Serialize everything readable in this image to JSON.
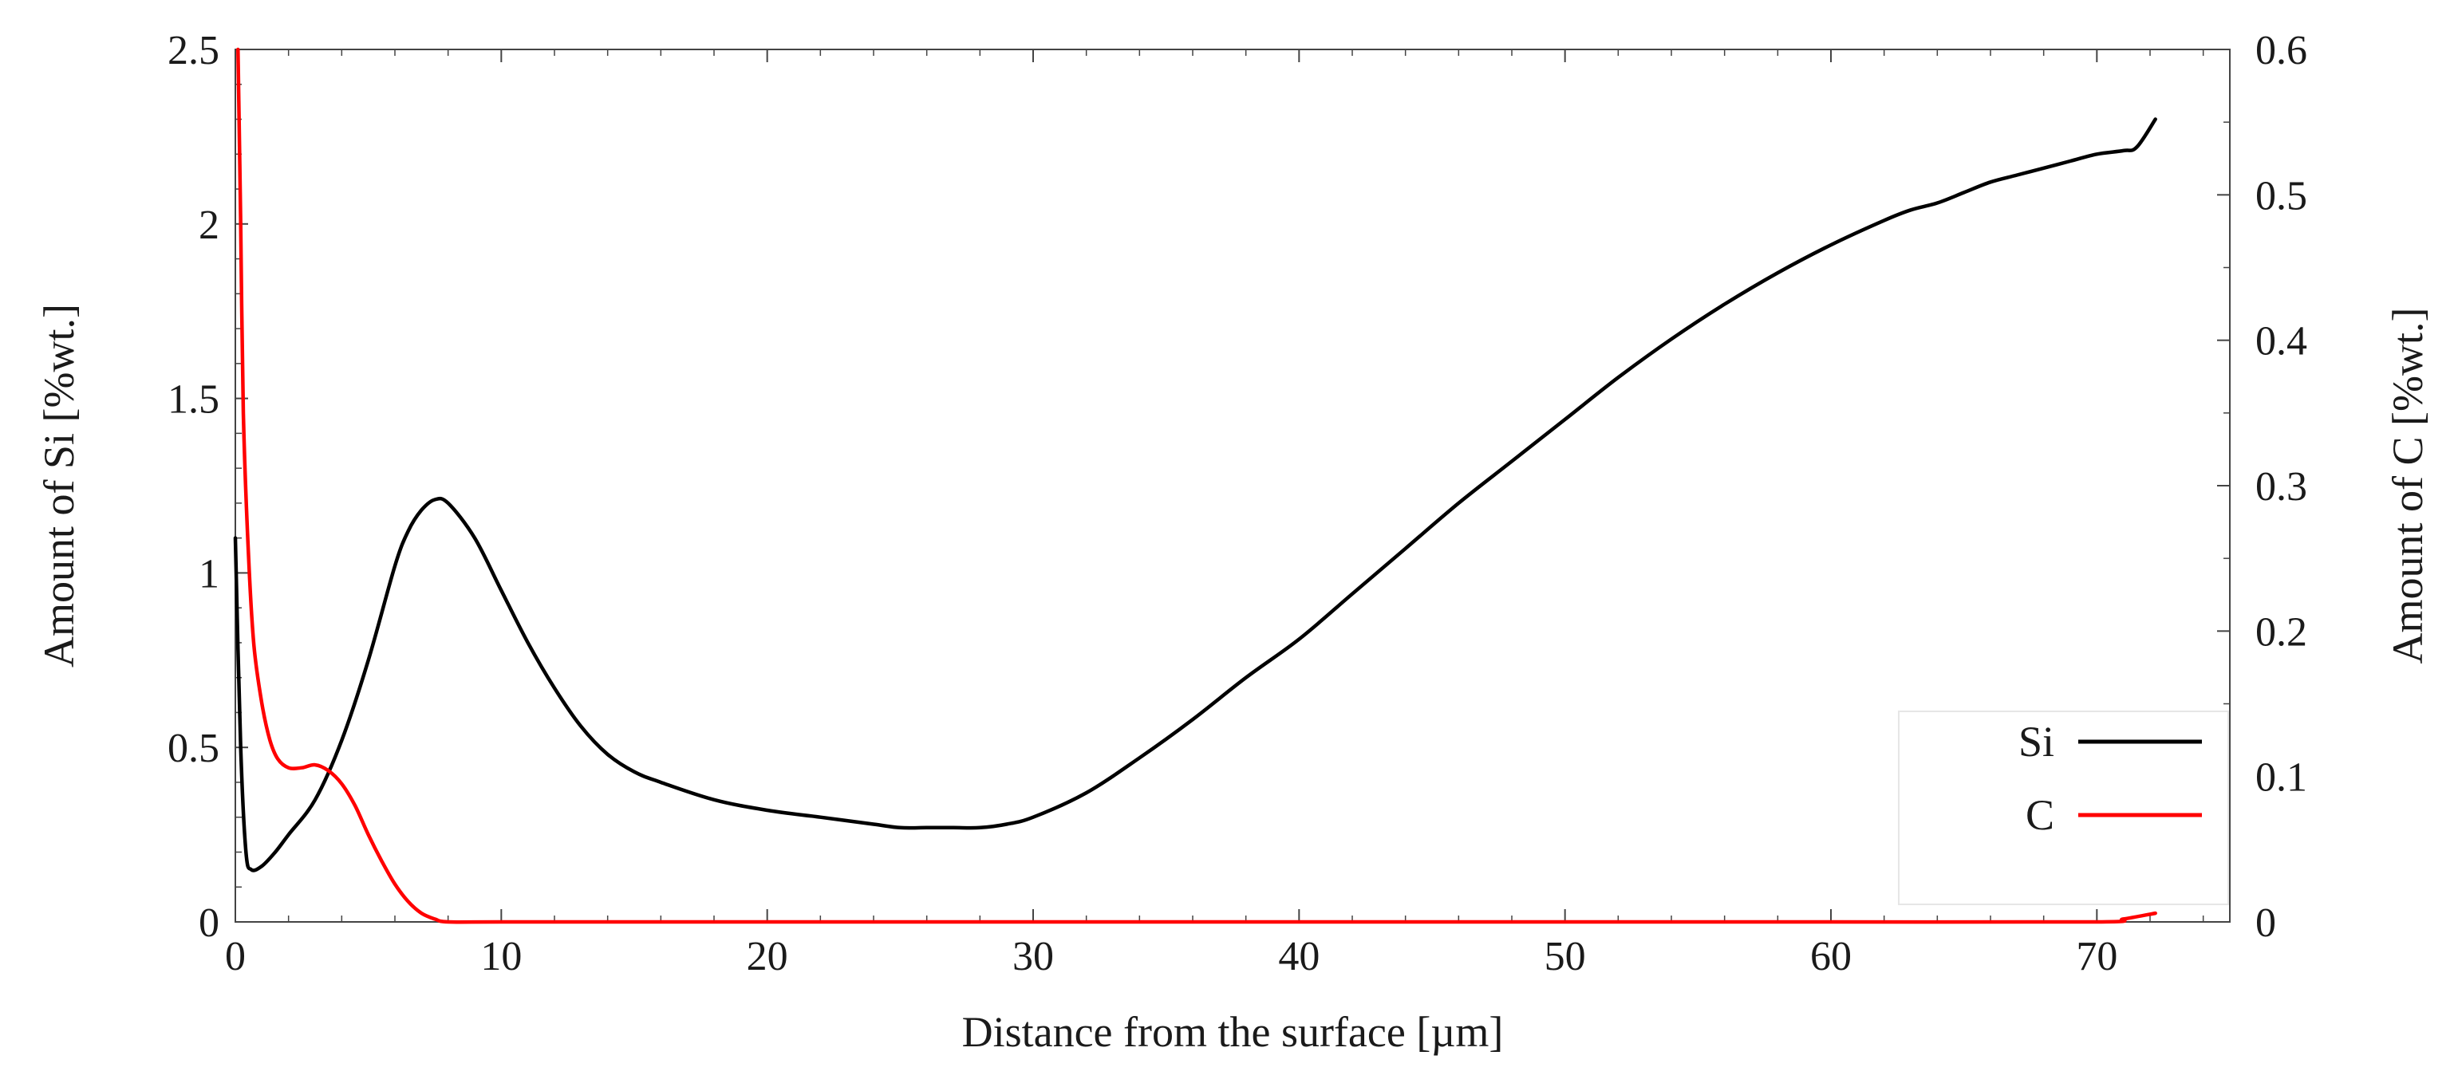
{
  "chart_data": {
    "type": "line",
    "title": "",
    "xlabel": "Distance from the surface [µm]",
    "ylabel_left": "Amount of Si [%wt.]",
    "ylabel_right": "Amount of C [%wt.]",
    "xlim": [
      0,
      75
    ],
    "ylim_left": [
      0,
      2.5
    ],
    "ylim_right": [
      0,
      0.6
    ],
    "x_ticks": [
      "0",
      "10",
      "20",
      "30",
      "40",
      "50",
      "60",
      "70"
    ],
    "y_left_ticks": [
      "0",
      "0.5",
      "1",
      "1.5",
      "2",
      "2.5"
    ],
    "y_right_ticks": [
      "0",
      "0.1",
      "0.2",
      "0.3",
      "0.4",
      "0.5",
      "0.6"
    ],
    "grid": false,
    "legend_position": "bottom-right",
    "series": [
      {
        "name": "Si",
        "axis": "left",
        "color": "#000000",
        "x": [
          0,
          0.2,
          0.4,
          0.6,
          1,
          1.5,
          2,
          3,
          4,
          5,
          6,
          6.5,
          7,
          7.5,
          8,
          9,
          10,
          11,
          12,
          13,
          14,
          15,
          16,
          18,
          20,
          22,
          24,
          25,
          26,
          27,
          28,
          29,
          30,
          32,
          34,
          36,
          38,
          40,
          42,
          44,
          46,
          48,
          50,
          52,
          54,
          56,
          58,
          60,
          62,
          63,
          64,
          65,
          66,
          67,
          68,
          69,
          70,
          71,
          71.5,
          72.2
        ],
        "y": [
          1.1,
          0.5,
          0.2,
          0.15,
          0.16,
          0.2,
          0.25,
          0.35,
          0.52,
          0.75,
          1.02,
          1.12,
          1.18,
          1.21,
          1.2,
          1.1,
          0.95,
          0.8,
          0.67,
          0.56,
          0.48,
          0.43,
          0.4,
          0.35,
          0.32,
          0.3,
          0.28,
          0.27,
          0.27,
          0.27,
          0.27,
          0.28,
          0.3,
          0.37,
          0.47,
          0.58,
          0.7,
          0.81,
          0.94,
          1.07,
          1.2,
          1.32,
          1.44,
          1.56,
          1.67,
          1.77,
          1.86,
          1.94,
          2.01,
          2.04,
          2.06,
          2.09,
          2.12,
          2.14,
          2.16,
          2.18,
          2.2,
          2.21,
          2.22,
          2.3
        ]
      },
      {
        "name": "C",
        "axis": "right",
        "color": "#ff0000",
        "x": [
          0.1,
          0.2,
          0.3,
          0.5,
          0.7,
          1,
          1.3,
          1.6,
          2,
          2.5,
          3,
          3.5,
          4,
          4.5,
          5,
          5.5,
          6,
          6.5,
          7,
          7.5,
          8,
          10,
          20,
          30,
          40,
          50,
          60,
          70,
          71,
          72.2
        ],
        "y": [
          0.6,
          0.48,
          0.35,
          0.25,
          0.19,
          0.15,
          0.125,
          0.112,
          0.106,
          0.106,
          0.108,
          0.104,
          0.095,
          0.08,
          0.06,
          0.042,
          0.026,
          0.014,
          0.006,
          0.002,
          0,
          0,
          0,
          0,
          0,
          0,
          0,
          0,
          0.002,
          0.006
        ]
      }
    ]
  }
}
